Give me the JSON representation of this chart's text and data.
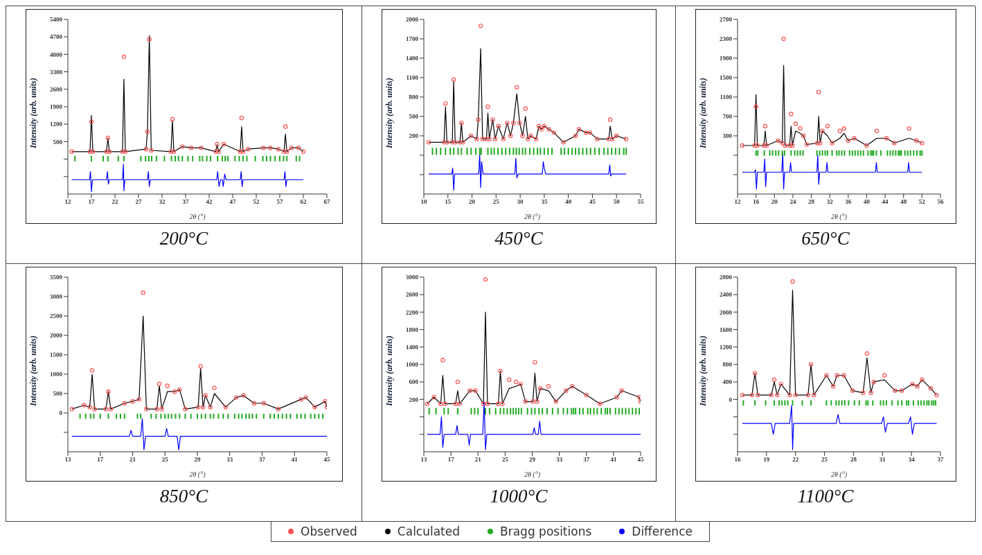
{
  "chart_data": [
    {
      "type": "scatter",
      "title": "200°C",
      "xlabel": "2θ (°)",
      "ylabel": "Intensity (arb. units)",
      "xlim": [
        12,
        67
      ],
      "xticks": [
        12,
        17,
        22,
        27,
        32,
        37,
        42,
        47,
        52,
        57,
        62,
        67
      ],
      "ylim": [
        -1600,
        5400
      ],
      "yticks": [
        {
          "value": -900,
          "label": null
        },
        {
          "value": -200,
          "label": null
        },
        500,
        1200,
        1900,
        2600,
        3300,
        4000,
        4700,
        5400
      ],
      "legend": "bottom",
      "x": [
        12.8,
        16.7,
        17,
        17.3,
        20.2,
        20.5,
        20.8,
        23.6,
        23.9,
        24.2,
        28.6,
        28.9,
        29.3,
        29.7,
        33.9,
        34.2,
        34.5,
        36.3,
        38.2,
        40.3,
        43.4,
        43.7,
        44.0,
        45.1,
        48.6,
        48.9,
        49.2,
        50.3,
        53.5,
        55,
        56.7,
        57.9,
        58.2,
        58.5,
        59.5,
        61,
        62
      ],
      "series": [
        {
          "name": "Observed",
          "marker": "circle",
          "color": "#ff5555",
          "values": [
            100,
            100,
            1300,
            100,
            100,
            650,
            100,
            100,
            3900,
            100,
            200,
            900,
            4600,
            150,
            100,
            1400,
            100,
            300,
            250,
            250,
            100,
            400,
            100,
            400,
            100,
            1450,
            100,
            200,
            250,
            250,
            200,
            100,
            1100,
            100,
            250,
            250,
            100
          ]
        },
        {
          "name": "Calculated",
          "type": "line",
          "color": "#000000",
          "values": [
            100,
            100,
            1550,
            100,
            100,
            650,
            100,
            100,
            3000,
            100,
            200,
            900,
            4750,
            150,
            100,
            1350,
            100,
            300,
            250,
            250,
            100,
            380,
            100,
            400,
            100,
            1100,
            100,
            200,
            250,
            250,
            200,
            100,
            800,
            100,
            250,
            250,
            100
          ]
        },
        {
          "name": "Bragg positions",
          "type": "bar",
          "color": "#22aa22",
          "x": [
            13.5,
            17,
            19.5,
            20.5,
            22.7,
            23.9,
            27.5,
            28.5,
            29.2,
            29.8,
            30.8,
            32.5,
            34,
            34.8,
            35.5,
            36.3,
            37.5,
            38.5,
            40,
            40.6,
            41.5,
            42.3,
            43.8,
            44.8,
            45.4,
            46,
            47.5,
            48.4,
            49.2,
            50,
            51.8,
            53.4,
            54.2,
            55,
            56,
            57,
            57.8,
            58.5,
            60.5,
            61.2
          ],
          "base": [
            -290,
            -290,
            -290,
            -290,
            -290,
            -290,
            -290,
            -290,
            -290,
            -290,
            -290,
            -290,
            -290,
            -290,
            -290,
            -290,
            -290,
            -290,
            -290,
            -290,
            -290,
            -290,
            -290,
            -290,
            -290,
            -290,
            -290,
            -290,
            -290,
            -290,
            -290,
            -290,
            -290,
            -290,
            -290,
            -290,
            -290,
            -290,
            -290,
            -290
          ],
          "values": [
            220,
            220,
            220,
            220,
            220,
            220,
            220,
            220,
            220,
            220,
            220,
            220,
            220,
            220,
            220,
            220,
            220,
            220,
            220,
            220,
            220,
            220,
            220,
            220,
            220,
            220,
            220,
            220,
            220,
            220,
            220,
            220,
            220,
            220,
            220,
            220,
            220,
            220,
            220,
            220
          ]
        },
        {
          "name": "Difference",
          "type": "line",
          "color": "#0000ff",
          "x": [
            12.8,
            16.6,
            16.8,
            17,
            17.2,
            20.2,
            20.4,
            20.6,
            20.8,
            23.6,
            23.8,
            23.9,
            24.1,
            28.9,
            29.1,
            29.3,
            29.5,
            43.6,
            43.8,
            44.1,
            44.4,
            44.8,
            45.0,
            45.3,
            45.6,
            48.6,
            48.8,
            49.0,
            49.2,
            57.9,
            58.1,
            58.3,
            58.5,
            62
          ],
          "values": [
            -1030,
            -1030,
            -700,
            -1500,
            -1030,
            -1030,
            -700,
            -1200,
            -1030,
            -1030,
            -400,
            -1470,
            -1030,
            -1030,
            -700,
            -1300,
            -1030,
            -1030,
            -700,
            -1300,
            -1030,
            -1030,
            -1300,
            -800,
            -1030,
            -1030,
            -700,
            -1300,
            -1030,
            -1030,
            -700,
            -1300,
            -1030,
            -1030
          ]
        }
      ]
    },
    {
      "type": "scatter",
      "title": "450°C",
      "xlabel": "2θ (°)",
      "ylabel": "Intensity (arb. units)",
      "xlim": [
        10,
        55
      ],
      "xticks": [
        10,
        15,
        20,
        25,
        30,
        35,
        40,
        45,
        50,
        55
      ],
      "ylim": [
        -700,
        2000
      ],
      "yticks": [
        {
          "value": -400,
          "label": null
        },
        {
          "value": -100,
          "label": null
        },
        200,
        500,
        800,
        1100,
        1400,
        1700,
        2000
      ],
      "x": [
        11,
        14.2,
        14.5,
        14.8,
        15.9,
        16.2,
        16.5,
        17.5,
        17.8,
        18.1,
        19.8,
        21.0,
        21.3,
        21.8,
        22.2,
        23.0,
        23.3,
        23.6,
        24.3,
        24.8,
        25.5,
        26.5,
        27.3,
        28.0,
        28.6,
        29.3,
        29.9,
        30.5,
        31.1,
        31.6,
        32.2,
        33.3,
        33.9,
        34.4,
        35,
        36,
        37,
        39,
        41.5,
        42.2,
        43.7,
        44.5,
        46,
        48.4,
        48.7,
        49.1,
        50,
        52
      ],
      "series": [
        {
          "marker": "circle",
          "color": "#ff5555",
          "values": [
            100,
            100,
            700,
            100,
            100,
            1070,
            100,
            100,
            400,
            100,
            200,
            150,
            450,
            1900,
            150,
            150,
            650,
            150,
            450,
            150,
            350,
            150,
            400,
            200,
            400,
            950,
            400,
            200,
            620,
            150,
            200,
            150,
            350,
            300,
            350,
            300,
            250,
            100,
            200,
            300,
            250,
            250,
            150,
            150,
            450,
            150,
            200,
            150
          ]
        },
        {
          "type": "line",
          "color": "#000000",
          "values": [
            100,
            100,
            650,
            100,
            100,
            1050,
            100,
            100,
            400,
            100,
            200,
            150,
            450,
            1550,
            150,
            150,
            550,
            150,
            450,
            150,
            350,
            150,
            400,
            200,
            400,
            850,
            400,
            200,
            500,
            150,
            200,
            150,
            350,
            300,
            350,
            300,
            250,
            100,
            200,
            300,
            250,
            250,
            150,
            150,
            350,
            150,
            200,
            150
          ]
        },
        {
          "type": "bar",
          "color": "#22aa22",
          "x": [
            11.8,
            12.6,
            13.5,
            14.5,
            15.5,
            16.2,
            17.1,
            17.8,
            19,
            19.8,
            20.8,
            21.6,
            21.9,
            23.3,
            24,
            24.6,
            25.4,
            26.2,
            27,
            27.8,
            28.6,
            29.2,
            29.8,
            30.5,
            31.1,
            32,
            32.8,
            33.6,
            34.2,
            35,
            35.8,
            36.6,
            38.5,
            39.2,
            40,
            40.8,
            41.5,
            42.2,
            43,
            43.8,
            44.6,
            45.5,
            46.4,
            47.4,
            48.2,
            49,
            49.8,
            50.6,
            51.5,
            52
          ],
          "base": [
            -95,
            -95,
            -95,
            -95,
            -95,
            -95,
            -95,
            -95,
            -95,
            -95,
            -95,
            -95,
            -95,
            -95,
            -95,
            -95,
            -95,
            -95,
            -95,
            -95,
            -95,
            -95,
            -95,
            -95,
            -95,
            -95,
            -95,
            -95,
            -95,
            -95,
            -95,
            -95,
            -95,
            -95,
            -95,
            -95,
            -95,
            -95,
            -95,
            -95,
            -95,
            -95,
            -95,
            -95,
            -95,
            -95,
            -95,
            -95,
            -95,
            -95
          ],
          "values": [
            110,
            110,
            110,
            110,
            110,
            110,
            110,
            110,
            110,
            110,
            110,
            110,
            110,
            110,
            110,
            110,
            110,
            110,
            110,
            110,
            110,
            110,
            110,
            110,
            110,
            110,
            110,
            110,
            110,
            110,
            110,
            110,
            110,
            110,
            110,
            110,
            110,
            110,
            110,
            110,
            110,
            110,
            110,
            110,
            110,
            110,
            110,
            110,
            110,
            110
          ]
        },
        {
          "type": "line",
          "color": "#0000ff",
          "x": [
            11,
            15.8,
            16.0,
            16.2,
            16.4,
            21.4,
            21.6,
            21.8,
            22.0,
            22.3,
            28.9,
            29.1,
            29.3,
            29.6,
            34.6,
            34.8,
            35,
            35.3,
            48.4,
            48.6,
            48.8,
            49.0,
            52
          ],
          "values": [
            -390,
            -390,
            -300,
            -640,
            -390,
            -390,
            -80,
            -600,
            -200,
            -390,
            -390,
            -150,
            -450,
            -390,
            -390,
            -200,
            -300,
            -390,
            -390,
            -250,
            -420,
            -390,
            -390
          ]
        }
      ]
    },
    {
      "type": "scatter",
      "title": "650°C",
      "xlabel": "2θ (°)",
      "ylabel": "Intensity (arb. units)",
      "xlim": [
        12,
        56
      ],
      "xticks": [
        12,
        16,
        20,
        24,
        28,
        32,
        36,
        40,
        44,
        48,
        52,
        56
      ],
      "ylim": [
        -900,
        2700
      ],
      "yticks": [
        {
          "value": -500,
          "label": null
        },
        {
          "value": -100,
          "label": null
        },
        300,
        700,
        1100,
        1500,
        1900,
        2300,
        2700
      ],
      "x": [
        13,
        15.7,
        16,
        16.3,
        17.7,
        18,
        18.3,
        20.8,
        21.7,
        22,
        22.3,
        23.3,
        23.6,
        23.9,
        24.6,
        25.6,
        26.3,
        27,
        29.3,
        29.6,
        29.9,
        30.4,
        31.5,
        32.5,
        34.2,
        35.1,
        36,
        37.3,
        40,
        42.2,
        44.3,
        46,
        49.2,
        50.8,
        52
      ],
      "series": [
        {
          "marker": "circle",
          "color": "#ff5555",
          "values": [
            100,
            100,
            900,
            100,
            100,
            500,
            100,
            200,
            150,
            2300,
            100,
            100,
            750,
            100,
            550,
            450,
            300,
            120,
            150,
            1200,
            150,
            400,
            500,
            150,
            400,
            450,
            200,
            250,
            100,
            400,
            250,
            150,
            450,
            200,
            150
          ]
        },
        {
          "type": "line",
          "color": "#000000",
          "values": [
            100,
            100,
            1150,
            100,
            100,
            400,
            100,
            200,
            150,
            1750,
            100,
            100,
            500,
            100,
            400,
            350,
            300,
            120,
            150,
            700,
            150,
            400,
            300,
            150,
            250,
            350,
            200,
            250,
            100,
            250,
            250,
            150,
            250,
            200,
            150
          ]
        },
        {
          "type": "bar",
          "color": "#22aa22",
          "x": [
            16,
            16.4,
            17.8,
            19,
            19.6,
            20.3,
            20.9,
            21.7,
            22.2,
            23.6,
            24.4,
            25,
            25.6,
            26.2,
            29.2,
            29.8,
            30.4,
            31,
            31.5,
            32.5,
            33.5,
            34,
            34.6,
            35.2,
            36.3,
            36.9,
            37.5,
            38.1,
            38.7,
            39.3,
            40.3,
            40.9,
            41.2,
            41.5,
            42.1,
            43.1,
            44.5,
            45.1,
            45.7,
            46.3,
            46.9,
            47.2,
            47.5,
            48.3,
            48.9,
            49.5,
            50.2,
            50.9,
            51.6,
            52
          ],
          "base": [
            -110,
            -110,
            -110,
            -110,
            -110,
            -110,
            -110,
            -110,
            -110,
            -110,
            -110,
            -110,
            -110,
            -110,
            -110,
            -110,
            -110,
            -110,
            -110,
            -110,
            -110,
            -110,
            -110,
            -110,
            -110,
            -110,
            -110,
            -110,
            -110,
            -110,
            -110,
            -110,
            -110,
            -110,
            -110,
            -110,
            -110,
            -110,
            -110,
            -110,
            -110,
            -110,
            -110,
            -110,
            -110,
            -110,
            -110,
            -110,
            -110,
            -110
          ],
          "values": [
            110,
            110,
            110,
            110,
            110,
            110,
            110,
            110,
            110,
            110,
            110,
            110,
            110,
            110,
            110,
            110,
            110,
            110,
            110,
            110,
            110,
            110,
            110,
            110,
            110,
            110,
            110,
            110,
            110,
            110,
            110,
            110,
            110,
            110,
            110,
            110,
            110,
            110,
            110,
            110,
            110,
            110,
            110,
            110,
            110,
            110,
            110,
            110,
            110,
            110
          ]
        },
        {
          "type": "line",
          "color": "#0000ff",
          "x": [
            13,
            15.7,
            15.9,
            16.1,
            16.3,
            17.7,
            17.9,
            18.1,
            18.3,
            21.6,
            21.8,
            22,
            22.2,
            23.3,
            23.5,
            23.7,
            29.2,
            29.4,
            29.6,
            29.8,
            31.2,
            31.4,
            31.6,
            41.9,
            42.1,
            42.3,
            48.9,
            49.1,
            49.3,
            52
          ],
          "values": [
            -450,
            -450,
            -400,
            -800,
            -450,
            -450,
            -180,
            -750,
            -450,
            -450,
            -50,
            -800,
            -450,
            -450,
            -250,
            -450,
            -450,
            -100,
            -700,
            -450,
            -450,
            -250,
            -450,
            -450,
            -250,
            -450,
            -450,
            -250,
            -450,
            -450
          ]
        }
      ]
    },
    {
      "type": "scatter",
      "title": "850°C",
      "xlabel": "2θ (°)",
      "ylabel": "Intensity (arb. units)",
      "xlim": [
        13,
        45
      ],
      "xticks": [
        13,
        17,
        21,
        25,
        29,
        33,
        37,
        41,
        45
      ],
      "ylim": [
        -1000,
        3500
      ],
      "yticks": [
        {
          "value": -500,
          "label": null
        },
        0,
        500,
        1000,
        1500,
        2000,
        2500,
        3000,
        3500
      ],
      "x": [
        13.5,
        15,
        15.7,
        16,
        16.3,
        17.7,
        18,
        18.3,
        20,
        21,
        21.8,
        22.3,
        22.7,
        24,
        24.3,
        24.6,
        25.3,
        26.2,
        26.8,
        27.5,
        29.1,
        29.4,
        29.7,
        30,
        30.6,
        31.1,
        32.5,
        33.8,
        34.7,
        36,
        37.2,
        39,
        41.8,
        42.4,
        43.5,
        44.8,
        45
      ],
      "series": [
        {
          "marker": "circle",
          "color": "#ff5555",
          "values": [
            100,
            200,
            150,
            1100,
            100,
            100,
            550,
            100,
            250,
            300,
            350,
            3100,
            100,
            100,
            750,
            100,
            700,
            550,
            600,
            100,
            150,
            1200,
            150,
            450,
            150,
            650,
            150,
            400,
            450,
            250,
            250,
            100,
            350,
            400,
            150,
            300,
            150
          ]
        },
        {
          "type": "line",
          "color": "#000000",
          "values": [
            100,
            200,
            150,
            1000,
            100,
            100,
            550,
            100,
            250,
            300,
            350,
            2500,
            100,
            100,
            700,
            100,
            550,
            550,
            600,
            100,
            150,
            1150,
            150,
            450,
            150,
            500,
            150,
            400,
            450,
            250,
            250,
            100,
            350,
            400,
            150,
            300,
            150
          ]
        },
        {
          "type": "bar",
          "color": "#22aa22",
          "x": [
            14.5,
            15.2,
            15.8,
            16.2,
            17,
            18,
            19,
            19.5,
            20,
            21.6,
            22,
            23.3,
            23.9,
            24.5,
            25,
            25.4,
            25.8,
            26.3,
            26.8,
            27.5,
            28.2,
            29,
            29.5,
            30,
            30.6,
            31,
            31.6,
            32.2,
            32.8,
            33.6,
            34.1,
            34.5,
            35,
            35.4,
            35.8,
            36.3,
            37.2,
            38,
            38.5,
            39,
            39.5,
            40,
            40.5,
            41.3,
            41.8,
            42.3,
            43,
            43.5,
            44,
            44.5
          ],
          "base": [
            -150,
            -150,
            -150,
            -150,
            -150,
            -150,
            -150,
            -150,
            -150,
            -150,
            -150,
            -150,
            -150,
            -150,
            -150,
            -150,
            -150,
            -150,
            -150,
            -150,
            -150,
            -150,
            -150,
            -150,
            -150,
            -150,
            -150,
            -150,
            -150,
            -150,
            -150,
            -150,
            -150,
            -150,
            -150,
            -150,
            -150,
            -150,
            -150,
            -150,
            -150,
            -150,
            -150,
            -150,
            -150,
            -150,
            -150,
            -150,
            -150,
            -150
          ],
          "values": [
            130,
            130,
            130,
            130,
            130,
            130,
            130,
            130,
            130,
            130,
            130,
            130,
            130,
            130,
            130,
            130,
            130,
            130,
            130,
            130,
            130,
            130,
            130,
            130,
            130,
            130,
            130,
            130,
            130,
            130,
            130,
            130,
            130,
            130,
            130,
            130,
            130,
            130,
            130,
            130,
            130,
            130,
            130,
            130,
            130,
            130,
            130,
            130,
            130,
            130
          ]
        },
        {
          "type": "line",
          "color": "#0000ff",
          "x": [
            13.5,
            20.6,
            20.8,
            21.0,
            22.0,
            22.2,
            22.4,
            22.6,
            25.0,
            25.2,
            25.4,
            26.5,
            26.7,
            26.9,
            45
          ],
          "values": [
            -600,
            -600,
            -450,
            -600,
            -600,
            -150,
            -950,
            -600,
            -600,
            -400,
            -600,
            -600,
            -950,
            -600,
            -600
          ]
        }
      ]
    },
    {
      "type": "scatter",
      "title": "1000°C",
      "xlabel": "2θ (°)",
      "ylabel": "Intensity (arb. units)",
      "xlim": [
        13,
        45
      ],
      "xticks": [
        13,
        17,
        21,
        25,
        29,
        33,
        37,
        41,
        45
      ],
      "ylim": [
        -1000,
        3000
      ],
      "yticks": [
        {
          "value": -600,
          "label": null
        },
        {
          "value": -200,
          "label": null
        },
        200,
        600,
        1000,
        1400,
        1800,
        2200,
        2600,
        3000
      ],
      "x": [
        13.5,
        14.5,
        15.5,
        15.8,
        16.1,
        17.7,
        18,
        18.3,
        19.8,
        20.6,
        21.8,
        22.1,
        22.4,
        24,
        24.3,
        24.6,
        25.6,
        26.6,
        27.3,
        28,
        29.1,
        29.4,
        29.7,
        30.2,
        31.4,
        32.5,
        34,
        34.9,
        37,
        39,
        41.5,
        42.2,
        44.8,
        45
      ],
      "series": [
        {
          "marker": "circle",
          "color": "#ff5555",
          "values": [
            100,
            250,
            100,
            1100,
            100,
            100,
            600,
            100,
            400,
            400,
            100,
            2950,
            100,
            100,
            850,
            100,
            650,
            600,
            550,
            150,
            150,
            1050,
            150,
            450,
            500,
            150,
            400,
            500,
            300,
            100,
            250,
            400,
            250,
            150
          ]
        },
        {
          "type": "line",
          "color": "#000000",
          "values": [
            100,
            250,
            100,
            750,
            100,
            100,
            400,
            100,
            400,
            400,
            100,
            2200,
            100,
            100,
            850,
            100,
            450,
            500,
            550,
            150,
            150,
            800,
            150,
            450,
            400,
            150,
            400,
            500,
            300,
            100,
            250,
            400,
            250,
            150
          ]
        },
        {
          "type": "bar",
          "color": "#22aa22",
          "x": [
            13.8,
            14.8,
            16,
            16.6,
            18,
            20,
            20.5,
            21,
            22.1,
            22.7,
            23.6,
            24.3,
            24.8,
            25.3,
            25.8,
            26.2,
            26.6,
            27,
            27.4,
            28.3,
            28.9,
            29.4,
            30,
            30.5,
            31.2,
            32,
            32.8,
            33.6,
            34.2,
            34.8,
            35.1,
            35.4,
            36,
            36.5,
            37.2,
            37.6,
            38.1,
            38.6,
            39.2,
            39.8,
            40.1,
            40.5,
            41.3,
            41.8,
            42.3,
            42.8,
            43.3,
            43.8,
            44.3,
            44.8
          ],
          "base": [
            -145,
            -145,
            -145,
            -145,
            -145,
            -145,
            -145,
            -145,
            -145,
            -145,
            -145,
            -145,
            -145,
            -145,
            -145,
            -145,
            -145,
            -145,
            -145,
            -145,
            -145,
            -145,
            -145,
            -145,
            -145,
            -145,
            -145,
            -145,
            -145,
            -145,
            -145,
            -145,
            -145,
            -145,
            -145,
            -145,
            -145,
            -145,
            -145,
            -145,
            -145,
            -145,
            -145,
            -145,
            -145,
            -145,
            -145,
            -145,
            -145,
            -145
          ],
          "values": [
            150,
            150,
            150,
            150,
            150,
            150,
            150,
            150,
            150,
            150,
            150,
            150,
            150,
            150,
            150,
            150,
            150,
            150,
            150,
            150,
            150,
            150,
            150,
            150,
            150,
            150,
            150,
            150,
            150,
            150,
            150,
            150,
            150,
            150,
            150,
            150,
            150,
            150,
            150,
            150,
            150,
            150,
            150,
            150,
            150,
            150,
            150,
            150,
            150,
            150
          ]
        },
        {
          "type": "line",
          "color": "#0000ff",
          "x": [
            13.5,
            15.4,
            15.6,
            15.8,
            16,
            17.7,
            17.9,
            18.1,
            19.5,
            19.7,
            19.9,
            21.7,
            21.9,
            22.1,
            22.3,
            29.1,
            29.3,
            29.5,
            29.9,
            30.1,
            30.3,
            45
          ],
          "values": [
            -600,
            -600,
            -200,
            -900,
            -600,
            -600,
            -400,
            -600,
            -600,
            -850,
            -600,
            -600,
            150,
            -950,
            -600,
            -600,
            -450,
            -600,
            -600,
            -300,
            -600,
            -600
          ]
        }
      ]
    },
    {
      "type": "scatter",
      "title": "1100°C",
      "xlabel": "2θ (°)",
      "ylabel": "Intensity (arb. units)",
      "xlim": [
        16,
        37
      ],
      "xticks": [
        16,
        19,
        22,
        25,
        28,
        31,
        34,
        37
      ],
      "ylim": [
        -1200,
        2800
      ],
      "yticks": [
        {
          "value": -800,
          "label": null
        },
        {
          "value": -400,
          "label": null
        },
        0,
        400,
        800,
        1200,
        1600,
        2000,
        2400,
        2800
      ],
      "x": [
        16.5,
        17.5,
        17.8,
        18.1,
        19.5,
        19.8,
        20.1,
        20.5,
        21.4,
        21.7,
        22,
        23.3,
        23.6,
        23.9,
        25.2,
        25.9,
        26.3,
        27,
        27.9,
        29,
        29.4,
        29.8,
        30.1,
        31.2,
        32.3,
        33,
        34.1,
        34.6,
        35.1,
        36,
        36.6
      ],
      "series": [
        {
          "marker": "circle",
          "color": "#ff5555",
          "values": [
            100,
            100,
            600,
            100,
            100,
            450,
            100,
            350,
            100,
            2700,
            100,
            100,
            800,
            100,
            550,
            300,
            550,
            550,
            200,
            150,
            1050,
            150,
            400,
            550,
            200,
            200,
            350,
            300,
            450,
            250,
            100
          ]
        },
        {
          "type": "line",
          "color": "#000000",
          "values": [
            100,
            100,
            600,
            100,
            100,
            400,
            100,
            350,
            100,
            2500,
            100,
            100,
            800,
            100,
            550,
            300,
            550,
            550,
            200,
            150,
            950,
            150,
            400,
            450,
            200,
            200,
            350,
            300,
            450,
            250,
            100
          ]
        },
        {
          "type": "bar",
          "color": "#22aa22",
          "x": [
            16.6,
            17.8,
            18.9,
            19.8,
            20.3,
            20.6,
            20.9,
            21.2,
            21.7,
            22.7,
            23.6,
            25.2,
            25.7,
            26.2,
            26.5,
            26.8,
            27.1,
            27.5,
            28.1,
            28.6,
            29.3,
            29.5,
            30,
            30.8,
            31.1,
            31.4,
            32,
            32.6,
            33,
            33.5,
            33.7,
            34.2,
            34.7,
            35,
            35.3,
            35.6,
            35.8,
            36.1,
            36.3,
            36.5
          ],
          "base": [
            -140,
            -140,
            -140,
            -140,
            -140,
            -140,
            -140,
            -140,
            -140,
            -140,
            -140,
            -140,
            -140,
            -140,
            -140,
            -140,
            -140,
            -140,
            -140,
            -140,
            -140,
            -140,
            -140,
            -140,
            -140,
            -140,
            -140,
            -140,
            -140,
            -140,
            -140,
            -140,
            -140,
            -140,
            -140,
            -140,
            -140,
            -140,
            -140,
            -140
          ],
          "values": [
            120,
            120,
            120,
            120,
            120,
            120,
            120,
            120,
            120,
            120,
            120,
            120,
            120,
            120,
            120,
            120,
            120,
            120,
            120,
            120,
            120,
            120,
            120,
            120,
            120,
            120,
            120,
            120,
            120,
            120,
            120,
            120,
            120,
            120,
            120,
            120,
            120,
            120,
            120,
            120
          ]
        },
        {
          "type": "line",
          "color": "#0000ff",
          "x": [
            16.5,
            19.5,
            19.7,
            19.9,
            21.4,
            21.6,
            21.7,
            21.8,
            26.2,
            26.4,
            26.6,
            30.9,
            31.1,
            31.3,
            31.5,
            33.7,
            33.9,
            34.1,
            34.3,
            36.6
          ],
          "values": [
            -550,
            -550,
            -800,
            -550,
            -550,
            -140,
            -1150,
            -550,
            -550,
            -350,
            -550,
            -550,
            -400,
            -750,
            -550,
            -550,
            -400,
            -800,
            -550,
            -550
          ]
        }
      ]
    }
  ]
}
